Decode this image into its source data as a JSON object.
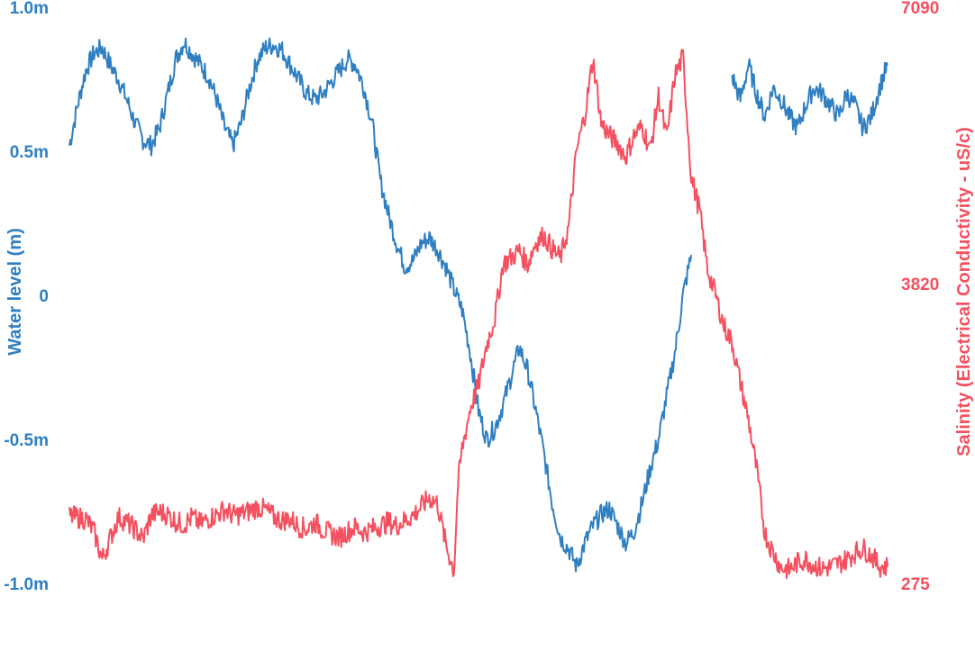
{
  "chart_data": {
    "type": "line",
    "title": "",
    "x_ticks_shown": false,
    "y_left": {
      "label": "Water level (m)",
      "range": [
        -1.0,
        1.0
      ],
      "ticks": [
        1.0,
        0.5,
        0,
        -0.5,
        -1.0
      ],
      "tick_labels": [
        "1.0m",
        "0.5m",
        "0",
        "-0.5m",
        "-1.0m"
      ],
      "color": "#2f7fc1"
    },
    "y_right": {
      "label": "Salinity (Electrical Conductivity - uS/c)",
      "range": [
        275,
        7090
      ],
      "ticks": [
        7090,
        3820,
        275
      ],
      "tick_labels": [
        "7090",
        "3820",
        "275"
      ],
      "color": "#f4505f"
    },
    "x": {
      "range": [
        0,
        100
      ]
    },
    "series": [
      {
        "axis": "left",
        "color": "#2f7fc1",
        "points": [
          [
            0,
            0.52
          ],
          [
            1,
            0.66
          ],
          [
            2,
            0.78
          ],
          [
            3,
            0.84
          ],
          [
            4,
            0.86
          ],
          [
            5,
            0.8
          ],
          [
            6,
            0.75
          ],
          [
            7,
            0.68
          ],
          [
            8,
            0.6
          ],
          [
            9,
            0.54
          ],
          [
            10,
            0.52
          ],
          [
            11,
            0.58
          ],
          [
            12,
            0.7
          ],
          [
            13,
            0.82
          ],
          [
            14,
            0.88
          ],
          [
            15,
            0.84
          ],
          [
            16,
            0.8
          ],
          [
            17,
            0.76
          ],
          [
            18,
            0.68
          ],
          [
            19,
            0.58
          ],
          [
            20,
            0.52
          ],
          [
            21,
            0.6
          ],
          [
            22,
            0.72
          ],
          [
            23,
            0.82
          ],
          [
            24,
            0.86
          ],
          [
            25,
            0.87
          ],
          [
            26,
            0.85
          ],
          [
            27,
            0.8
          ],
          [
            28,
            0.75
          ],
          [
            29,
            0.7
          ],
          [
            30,
            0.68
          ],
          [
            31,
            0.7
          ],
          [
            32,
            0.74
          ],
          [
            33,
            0.78
          ],
          [
            34,
            0.82
          ],
          [
            35,
            0.8
          ],
          [
            36,
            0.72
          ],
          [
            37,
            0.6
          ],
          [
            38,
            0.4
          ],
          [
            39,
            0.28
          ],
          [
            40,
            0.18
          ],
          [
            41,
            0.1
          ],
          [
            42,
            0.12
          ],
          [
            43,
            0.18
          ],
          [
            44,
            0.2
          ],
          [
            45,
            0.16
          ],
          [
            46,
            0.1
          ],
          [
            47,
            0.02
          ],
          [
            48,
            -0.05
          ],
          [
            49,
            -0.2
          ],
          [
            50,
            -0.4
          ],
          [
            51,
            -0.5
          ],
          [
            52,
            -0.46
          ],
          [
            53,
            -0.38
          ],
          [
            54,
            -0.28
          ],
          [
            55,
            -0.18
          ],
          [
            56,
            -0.26
          ],
          [
            57,
            -0.4
          ],
          [
            58,
            -0.55
          ],
          [
            59,
            -0.72
          ],
          [
            60,
            -0.84
          ],
          [
            61,
            -0.88
          ],
          [
            62,
            -0.94
          ],
          [
            63,
            -0.86
          ],
          [
            64,
            -0.8
          ],
          [
            65,
            -0.76
          ],
          [
            66,
            -0.74
          ],
          [
            67,
            -0.8
          ],
          [
            68,
            -0.86
          ],
          [
            69,
            -0.82
          ],
          [
            70,
            -0.72
          ],
          [
            71,
            -0.6
          ],
          [
            72,
            -0.5
          ],
          [
            73,
            -0.35
          ],
          [
            74,
            -0.2
          ],
          [
            75,
            0.0
          ],
          [
            76,
            0.14
          ]
        ]
      },
      {
        "axis": "left",
        "color": "#2f7fc1",
        "points": [
          [
            81,
            0.76
          ],
          [
            82,
            0.68
          ],
          [
            83,
            0.8
          ],
          [
            84,
            0.7
          ],
          [
            85,
            0.62
          ],
          [
            86,
            0.72
          ],
          [
            87,
            0.68
          ],
          [
            88,
            0.62
          ],
          [
            89,
            0.58
          ],
          [
            90,
            0.66
          ],
          [
            91,
            0.72
          ],
          [
            92,
            0.7
          ],
          [
            93,
            0.66
          ],
          [
            94,
            0.62
          ],
          [
            95,
            0.7
          ],
          [
            96,
            0.66
          ],
          [
            97,
            0.58
          ],
          [
            98,
            0.62
          ],
          [
            99,
            0.72
          ],
          [
            100,
            0.8
          ]
        ]
      },
      {
        "axis": "right",
        "color": "#f4505f",
        "points": [
          [
            0,
            1070
          ],
          [
            2,
            1040
          ],
          [
            3,
            890
          ],
          [
            4,
            560
          ],
          [
            6,
            1060
          ],
          [
            7,
            1000
          ],
          [
            8,
            920
          ],
          [
            9,
            800
          ],
          [
            10,
            1080
          ],
          [
            11,
            1120
          ],
          [
            12,
            1090
          ],
          [
            13,
            1010
          ],
          [
            14,
            970
          ],
          [
            15,
            1060
          ],
          [
            16,
            980
          ],
          [
            17,
            1040
          ],
          [
            18,
            1090
          ],
          [
            19,
            1150
          ],
          [
            20,
            1080
          ],
          [
            21,
            1100
          ],
          [
            22,
            1130
          ],
          [
            23,
            1180
          ],
          [
            24,
            1140
          ],
          [
            25,
            1060
          ],
          [
            26,
            1020
          ],
          [
            27,
            1040
          ],
          [
            28,
            950
          ],
          [
            29,
            920
          ],
          [
            30,
            1000
          ],
          [
            31,
            910
          ],
          [
            32,
            860
          ],
          [
            33,
            820
          ],
          [
            34,
            890
          ],
          [
            35,
            940
          ],
          [
            36,
            880
          ],
          [
            37,
            920
          ],
          [
            38,
            960
          ],
          [
            39,
            1000
          ],
          [
            40,
            960
          ],
          [
            41,
            1020
          ],
          [
            42,
            1080
          ],
          [
            43,
            1180
          ],
          [
            44,
            1290
          ],
          [
            45,
            1220
          ],
          [
            46,
            740
          ],
          [
            47,
            420
          ],
          [
            47.5,
            1460
          ],
          [
            48,
            1870
          ],
          [
            49,
            2350
          ],
          [
            50,
            2620
          ],
          [
            51,
            3100
          ],
          [
            52,
            3420
          ],
          [
            53,
            4050
          ],
          [
            54,
            4130
          ],
          [
            55,
            4210
          ],
          [
            56,
            4050
          ],
          [
            57,
            4310
          ],
          [
            58,
            4390
          ],
          [
            59,
            4230
          ],
          [
            60,
            4120
          ],
          [
            61,
            4480
          ],
          [
            62,
            5390
          ],
          [
            63,
            5820
          ],
          [
            64,
            6480
          ],
          [
            65,
            5720
          ],
          [
            66,
            5570
          ],
          [
            67,
            5480
          ],
          [
            68,
            5320
          ],
          [
            69,
            5570
          ],
          [
            70,
            5680
          ],
          [
            71,
            5400
          ],
          [
            72,
            6040
          ],
          [
            73,
            5540
          ],
          [
            74,
            6280
          ],
          [
            75,
            6500
          ],
          [
            76,
            5080
          ],
          [
            77,
            4700
          ],
          [
            78,
            3990
          ],
          [
            79,
            3680
          ],
          [
            80,
            3320
          ],
          [
            81,
            3120
          ],
          [
            82,
            2650
          ],
          [
            83,
            2210
          ],
          [
            84,
            1620
          ],
          [
            85,
            870
          ],
          [
            86,
            640
          ],
          [
            87,
            460
          ],
          [
            88,
            440
          ],
          [
            89,
            520
          ],
          [
            90,
            560
          ],
          [
            91,
            490
          ],
          [
            92,
            450
          ],
          [
            93,
            470
          ],
          [
            94,
            510
          ],
          [
            95,
            560
          ],
          [
            96,
            640
          ],
          [
            97,
            690
          ],
          [
            98,
            610
          ],
          [
            99,
            480
          ],
          [
            100,
            470
          ]
        ]
      }
    ]
  }
}
